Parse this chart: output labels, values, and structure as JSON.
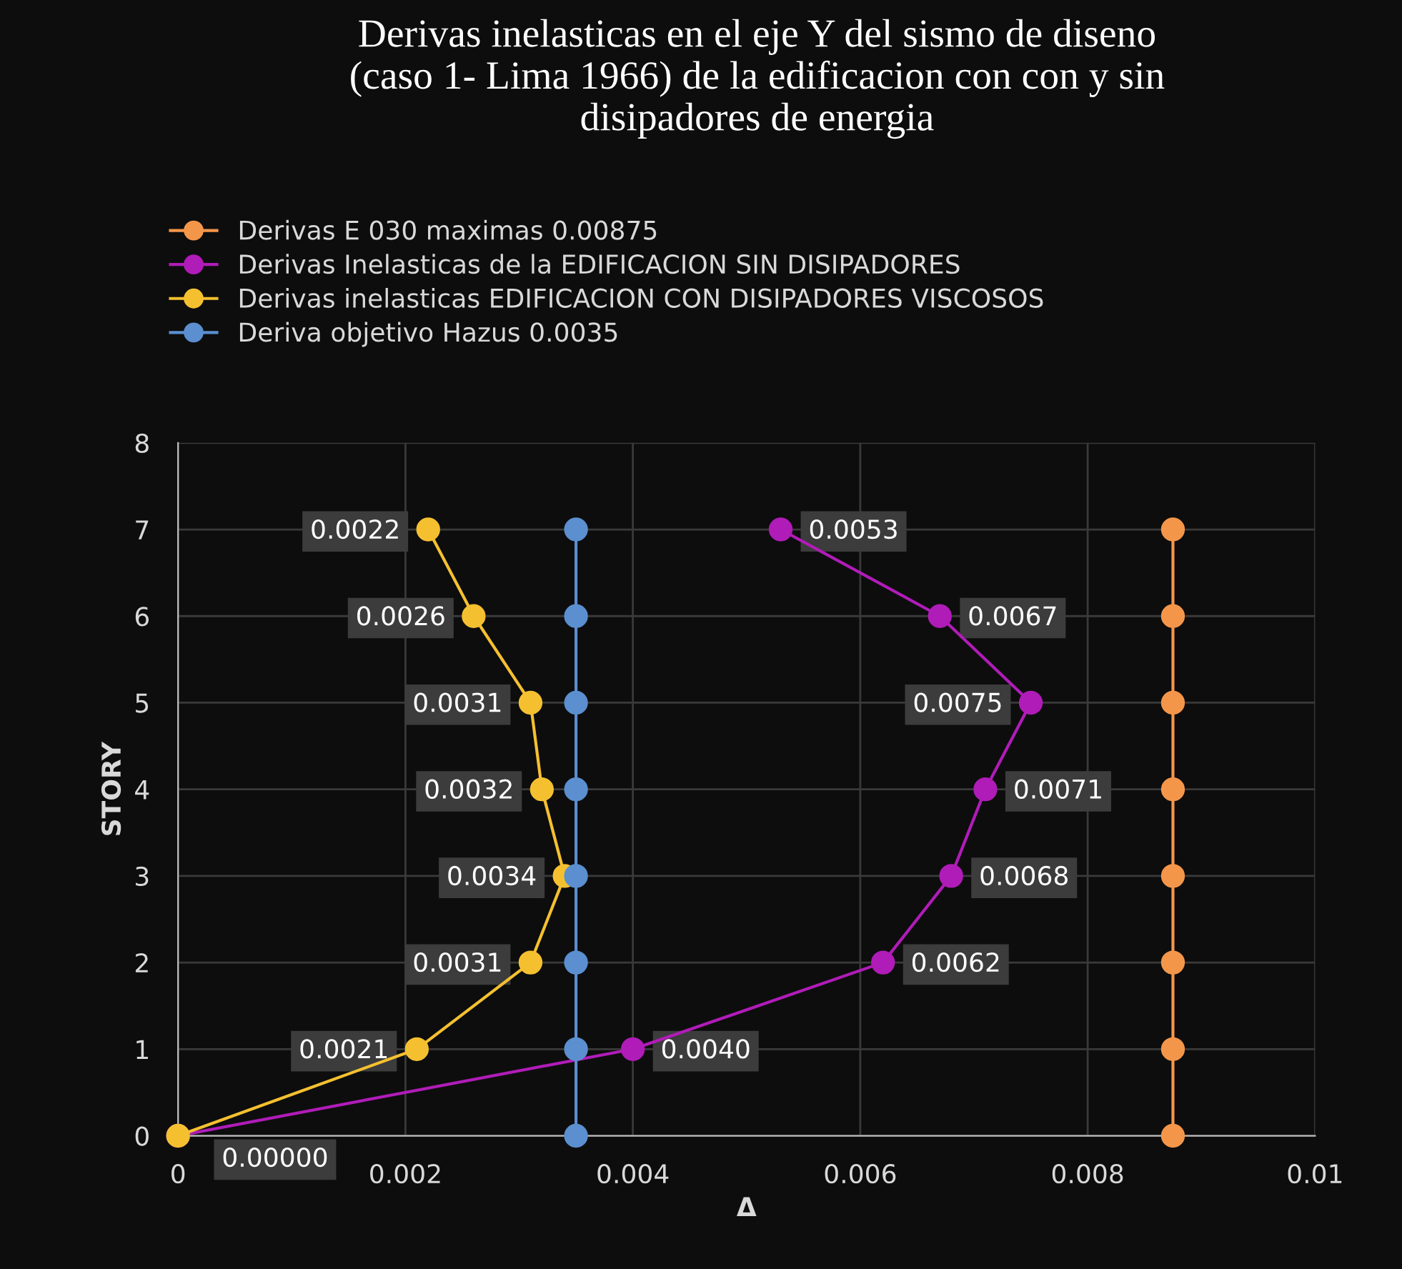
{
  "chart_data": {
    "type": "line",
    "orientation": "horizontal",
    "title": "Derivas inelasticas en el eje Y del sismo de diseno\n(caso 1- Lima 1966) de la edificacion con con y sin\ndisipadores de energia",
    "xlabel": "Δ",
    "ylabel": "STORY",
    "series": [
      {
        "name": "Derivas E 030 maximas 0.00875",
        "color": "#f4964a",
        "x": [
          0,
          1,
          2,
          3,
          4,
          5,
          6,
          7
        ],
        "values": [
          0.00875,
          0.00875,
          0.00875,
          0.00875,
          0.00875,
          0.00875,
          0.00875,
          0.00875
        ]
      },
      {
        "name": "Derivas Inelasticas de la EDIFICACION SIN DISIPADORES",
        "color": "#b01cb8",
        "x": [
          0,
          1,
          2,
          3,
          4,
          5,
          6,
          7
        ],
        "values": [
          0,
          0.004,
          0.0062,
          0.0068,
          0.0071,
          0.0075,
          0.0067,
          0.0053
        ],
        "value_labels": [
          null,
          "0.0040",
          "0.0062",
          "0.0068",
          "0.0071",
          "0.0075",
          "0.0067",
          "0.0053"
        ]
      },
      {
        "name": "Derivas inelasticas EDIFICACION CON DISIPADORES VISCOSOS",
        "color": "#f5c030",
        "x": [
          0,
          1,
          2,
          3,
          4,
          5,
          6,
          7
        ],
        "values": [
          0,
          0.0021,
          0.0031,
          0.0034,
          0.0032,
          0.0031,
          0.0026,
          0.0022
        ],
        "value_labels": [
          "0.00000",
          "0.0021",
          "0.0031",
          "0.0034",
          "0.0032",
          "0.0031",
          "0.0026",
          "0.0022"
        ]
      },
      {
        "name": "Deriva objetivo Hazus 0.0035",
        "color": "#5b8fd0",
        "x": [
          0,
          1,
          2,
          3,
          4,
          5,
          6,
          7
        ],
        "values": [
          0.0035,
          0.0035,
          0.0035,
          0.0035,
          0.0035,
          0.0035,
          0.0035,
          0.0035
        ]
      }
    ],
    "xlim": [
      0,
      0.01
    ],
    "xticks": [
      0,
      0.002,
      0.004,
      0.006,
      0.008,
      0.01
    ],
    "ylim": [
      0,
      8
    ],
    "yticks": [
      0,
      1,
      2,
      3,
      4,
      5,
      6,
      7,
      8
    ],
    "grid": true,
    "legend": "top left",
    "marker": "circle",
    "line_style": "solid"
  }
}
